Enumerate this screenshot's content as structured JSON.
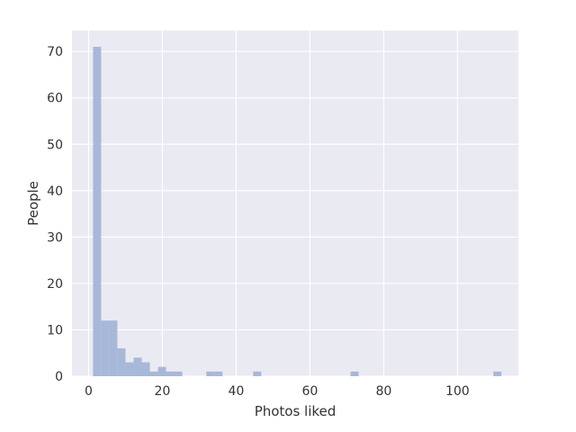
{
  "chart_data": {
    "type": "bar",
    "title": "",
    "xlabel": "Photos liked",
    "ylabel": "People",
    "xlim": [
      -4.5,
      116.5
    ],
    "ylim": [
      0,
      74.5
    ],
    "x_ticks": [
      0,
      20,
      40,
      60,
      80,
      100
    ],
    "y_ticks": [
      0,
      10,
      20,
      30,
      40,
      50,
      60,
      70
    ],
    "grid": true,
    "bar_color": "#a8b8d8",
    "background_color": "#eaeaf2",
    "grid_color": "#ffffff",
    "bins": [
      {
        "x0": 1.2,
        "x1": 3.4,
        "count": 71
      },
      {
        "x0": 3.4,
        "x1": 5.6,
        "count": 12
      },
      {
        "x0": 5.6,
        "x1": 7.8,
        "count": 12
      },
      {
        "x0": 7.8,
        "x1": 10.0,
        "count": 6
      },
      {
        "x0": 10.0,
        "x1": 12.2,
        "count": 3
      },
      {
        "x0": 12.2,
        "x1": 14.4,
        "count": 4
      },
      {
        "x0": 14.4,
        "x1": 16.6,
        "count": 3
      },
      {
        "x0": 16.6,
        "x1": 18.8,
        "count": 1
      },
      {
        "x0": 18.8,
        "x1": 21.0,
        "count": 2
      },
      {
        "x0": 21.0,
        "x1": 23.2,
        "count": 1
      },
      {
        "x0": 23.2,
        "x1": 25.4,
        "count": 1
      },
      {
        "x0": 31.9,
        "x1": 34.1,
        "count": 1
      },
      {
        "x0": 34.1,
        "x1": 36.3,
        "count": 1
      },
      {
        "x0": 44.6,
        "x1": 46.8,
        "count": 1
      },
      {
        "x0": 71.0,
        "x1": 73.2,
        "count": 1
      },
      {
        "x0": 109.7,
        "x1": 111.9,
        "count": 1
      }
    ]
  }
}
